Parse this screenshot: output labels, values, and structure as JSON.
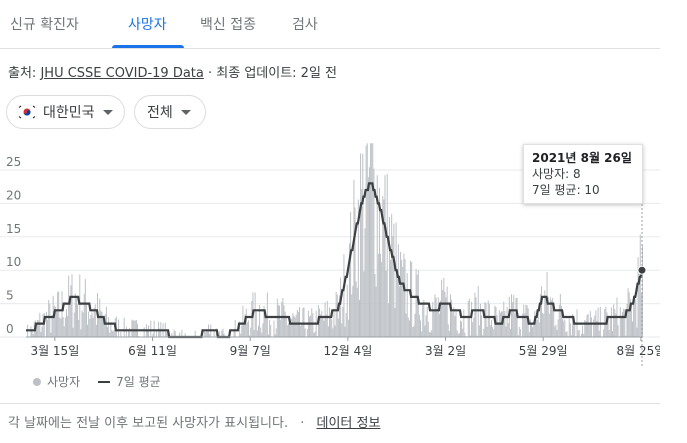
{
  "tabs": [
    {
      "label": "신규 확진자",
      "active": false
    },
    {
      "label": "사망자",
      "active": true
    },
    {
      "label": "백신 접종",
      "active": false
    },
    {
      "label": "검사",
      "active": false
    }
  ],
  "source": {
    "prefix": "출처:",
    "link": "JHU CSSE COVID-19 Data",
    "suffix": "· 최종 업데이트: 2일 전"
  },
  "filters": {
    "country": "대한민국",
    "range": "전체"
  },
  "tooltip": {
    "date": "2021년 8월 26일",
    "deaths": "사망자: 8",
    "avg": "7일 평균: 10"
  },
  "legend": {
    "daily": "사망자",
    "avg": "7일 평균"
  },
  "footer": {
    "note": "각 날짜에는 전날 이후 보고된 사망자가 표시됩니다.",
    "link": "데이터 정보"
  },
  "colors": {
    "accent": "#1a73e8",
    "bars": "#bdc1c6",
    "line": "#3c4043"
  },
  "chart_data": {
    "type": "area",
    "y_ticks": [
      "25",
      "20",
      "15",
      "10",
      "5",
      "0"
    ],
    "ylim": [
      0,
      25
    ],
    "x_ticks": [
      "3월 15일",
      "6월 11일",
      "9월 7일",
      "12월 4일",
      "3월 2일",
      "5월 29일",
      "8월 25일"
    ],
    "series": [
      {
        "name": "7일 평균",
        "x": [
          "2020-02-20",
          "2020-03-01",
          "2020-03-10",
          "2020-03-20",
          "2020-04-01",
          "2020-04-10",
          "2020-04-20",
          "2020-05-01",
          "2020-05-15",
          "2020-06-01",
          "2020-06-11",
          "2020-06-25",
          "2020-07-10",
          "2020-07-20",
          "2020-08-01",
          "2020-08-15",
          "2020-08-25",
          "2020-09-05",
          "2020-09-15",
          "2020-09-25",
          "2020-10-05",
          "2020-10-20",
          "2020-11-01",
          "2020-11-15",
          "2020-11-25",
          "2020-12-04",
          "2020-12-10",
          "2020-12-15",
          "2020-12-20",
          "2020-12-25",
          "2021-01-01",
          "2021-01-10",
          "2021-01-20",
          "2021-02-01",
          "2021-02-10",
          "2021-02-20",
          "2021-03-02",
          "2021-03-10",
          "2021-03-20",
          "2021-04-01",
          "2021-04-10",
          "2021-04-20",
          "2021-05-01",
          "2021-05-10",
          "2021-05-20",
          "2021-05-29",
          "2021-06-10",
          "2021-06-20",
          "2021-07-01",
          "2021-07-10",
          "2021-07-20",
          "2021-08-01",
          "2021-08-10",
          "2021-08-18",
          "2021-08-26"
        ],
        "values": [
          0.5,
          2,
          3,
          4,
          6,
          5,
          4,
          2,
          1,
          1,
          1,
          0.5,
          0,
          0,
          1,
          0,
          1,
          3,
          4,
          3,
          3,
          2,
          2,
          3,
          4,
          10,
          15,
          19,
          22,
          23,
          20,
          14,
          8,
          6,
          5,
          4,
          5,
          4,
          3,
          4,
          3,
          2,
          4,
          3,
          2,
          6,
          4,
          3,
          2,
          2,
          2,
          3,
          3,
          5,
          10
        ]
      }
    ],
    "annotations": [
      {
        "x": "2021-08-26",
        "deaths": 8,
        "avg": 10
      }
    ]
  }
}
